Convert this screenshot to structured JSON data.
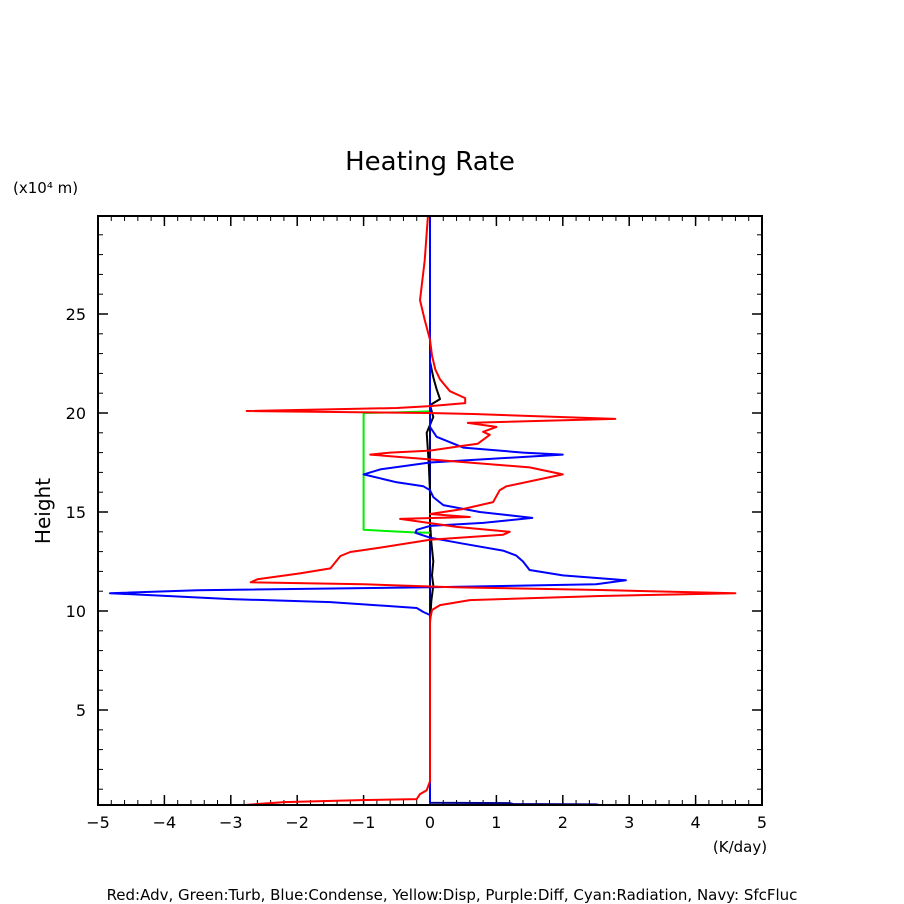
{
  "chart_data": {
    "type": "line",
    "title": "Heating Rate",
    "xlabel": "(K/day)",
    "ylabel": "Height",
    "y_unit": "(x10⁴ m)",
    "xlim": [
      -5,
      5
    ],
    "ylim": [
      0.2,
      30
    ],
    "xticks": [
      -5,
      -4,
      -3,
      -2,
      -1,
      0,
      1,
      2,
      3,
      4,
      5
    ],
    "yticks": [
      5,
      10,
      15,
      20,
      25
    ],
    "grid": false,
    "legend_text": "Red:Adv, Green:Turb, Blue:Condense, Yellow:Disp, Purple:Diff, Cyan:Radiation, Navy: SfcFluc",
    "series": [
      {
        "name": "Navy: SfcFluc",
        "color": "#00008b",
        "points": [
          [
            0,
            30
          ],
          [
            0,
            0.32
          ],
          [
            1.2,
            0.3
          ],
          [
            1.25,
            0.25
          ],
          [
            2.5,
            0.23
          ],
          [
            2.55,
            0.18
          ],
          [
            3.8,
            0.17
          ],
          [
            3.85,
            0.15
          ],
          [
            5,
            0.15
          ]
        ]
      },
      {
        "name": "Black",
        "color": "#000000",
        "points": [
          [
            0,
            9.4
          ],
          [
            0.02,
            10.5
          ],
          [
            0.05,
            11.3
          ],
          [
            0.03,
            11.8
          ],
          [
            0.05,
            12.5
          ],
          [
            0.02,
            13.5
          ],
          [
            0,
            14.5
          ],
          [
            0,
            16
          ],
          [
            -0.02,
            17.5
          ],
          [
            -0.05,
            19
          ],
          [
            0.05,
            19.8
          ],
          [
            0,
            20.4
          ],
          [
            0.15,
            20.7
          ],
          [
            0.1,
            21.2
          ],
          [
            0.05,
            21.8
          ],
          [
            0,
            22.6
          ],
          [
            0,
            23
          ]
        ]
      },
      {
        "name": "Green:Turb",
        "color": "#00ee00",
        "points": [
          [
            0,
            13.95
          ],
          [
            -0.25,
            13.97
          ],
          [
            -1,
            14.1
          ],
          [
            -1,
            20.0
          ],
          [
            -0.5,
            20.03
          ],
          [
            0,
            20.08
          ]
        ]
      },
      {
        "name": "Blue:Condense",
        "color": "#0000ff",
        "points": [
          [
            0,
            0.3
          ],
          [
            0,
            9.8
          ],
          [
            -0.1,
            9.95
          ],
          [
            -0.2,
            10.15
          ],
          [
            -1.5,
            10.45
          ],
          [
            -3.0,
            10.6
          ],
          [
            -4.82,
            10.9
          ],
          [
            -3.5,
            11.05
          ],
          [
            0,
            11.2
          ],
          [
            2.5,
            11.35
          ],
          [
            2.95,
            11.55
          ],
          [
            2.0,
            11.8
          ],
          [
            1.5,
            12.07
          ],
          [
            1.4,
            12.5
          ],
          [
            1.3,
            12.8
          ],
          [
            1.1,
            13.05
          ],
          [
            0.5,
            13.4
          ],
          [
            0,
            13.7
          ],
          [
            -0.22,
            13.95
          ],
          [
            -0.2,
            14.1
          ],
          [
            0,
            14.3
          ],
          [
            0.8,
            14.45
          ],
          [
            1.54,
            14.7
          ],
          [
            0.75,
            15.0
          ],
          [
            0.2,
            15.35
          ],
          [
            0.05,
            15.75
          ],
          [
            0,
            16.1
          ],
          [
            -0.1,
            16.3
          ],
          [
            -0.5,
            16.5
          ],
          [
            -1.0,
            16.9
          ],
          [
            -0.75,
            17.15
          ],
          [
            0,
            17.5
          ],
          [
            1.0,
            17.7
          ],
          [
            2.0,
            17.9
          ],
          [
            1.4,
            18.0
          ],
          [
            0.5,
            18.25
          ],
          [
            0.1,
            18.8
          ],
          [
            0,
            19.3
          ],
          [
            0,
            30
          ]
        ]
      },
      {
        "name": "Red:Adv",
        "color": "#ff0000",
        "points": [
          [
            -2.79,
            0.2
          ],
          [
            -2.2,
            0.35
          ],
          [
            -1.05,
            0.45
          ],
          [
            -0.2,
            0.5
          ],
          [
            -0.15,
            0.75
          ],
          [
            -0.05,
            0.95
          ],
          [
            0,
            1.4
          ],
          [
            0,
            9.55
          ],
          [
            0.03,
            10.05
          ],
          [
            0.15,
            10.3
          ],
          [
            0.6,
            10.55
          ],
          [
            2.56,
            10.76
          ],
          [
            4.6,
            10.9
          ],
          [
            2.56,
            11.06
          ],
          [
            0.35,
            11.2
          ],
          [
            -1.0,
            11.35
          ],
          [
            -2.7,
            11.45
          ],
          [
            -2.6,
            11.6
          ],
          [
            -1.96,
            11.9
          ],
          [
            -1.5,
            12.15
          ],
          [
            -1.35,
            12.78
          ],
          [
            -1.2,
            12.98
          ],
          [
            -0.75,
            13.2
          ],
          [
            0,
            13.6
          ],
          [
            1.1,
            13.85
          ],
          [
            1.2,
            14.0
          ],
          [
            0.4,
            14.25
          ],
          [
            -0.45,
            14.65
          ],
          [
            0.6,
            14.75
          ],
          [
            0.0,
            14.9
          ],
          [
            0.5,
            15.15
          ],
          [
            0.95,
            15.5
          ],
          [
            1.05,
            16.1
          ],
          [
            1.15,
            16.3
          ],
          [
            2.0,
            16.9
          ],
          [
            1.5,
            17.25
          ],
          [
            0.2,
            17.6
          ],
          [
            -0.9,
            17.9
          ],
          [
            -0.6,
            18.0
          ],
          [
            0,
            18.1
          ],
          [
            0.5,
            18.35
          ],
          [
            0.72,
            18.45
          ],
          [
            0.9,
            18.9
          ],
          [
            0.8,
            19.05
          ],
          [
            1.0,
            19.3
          ],
          [
            0.57,
            19.5
          ],
          [
            2.79,
            19.7
          ],
          [
            0.65,
            19.95
          ],
          [
            -0.02,
            20.0
          ],
          [
            -2.76,
            20.1
          ],
          [
            -0.5,
            20.25
          ],
          [
            0,
            20.35
          ],
          [
            0.53,
            20.5
          ],
          [
            0.53,
            20.75
          ],
          [
            0.3,
            21.1
          ],
          [
            0.15,
            21.7
          ],
          [
            0.08,
            22.2
          ],
          [
            0.03,
            22.9
          ],
          [
            0,
            23.7
          ],
          [
            -0.08,
            24.7
          ],
          [
            -0.15,
            25.7
          ],
          [
            -0.08,
            27.7
          ],
          [
            -0.03,
            30
          ]
        ]
      }
    ]
  }
}
